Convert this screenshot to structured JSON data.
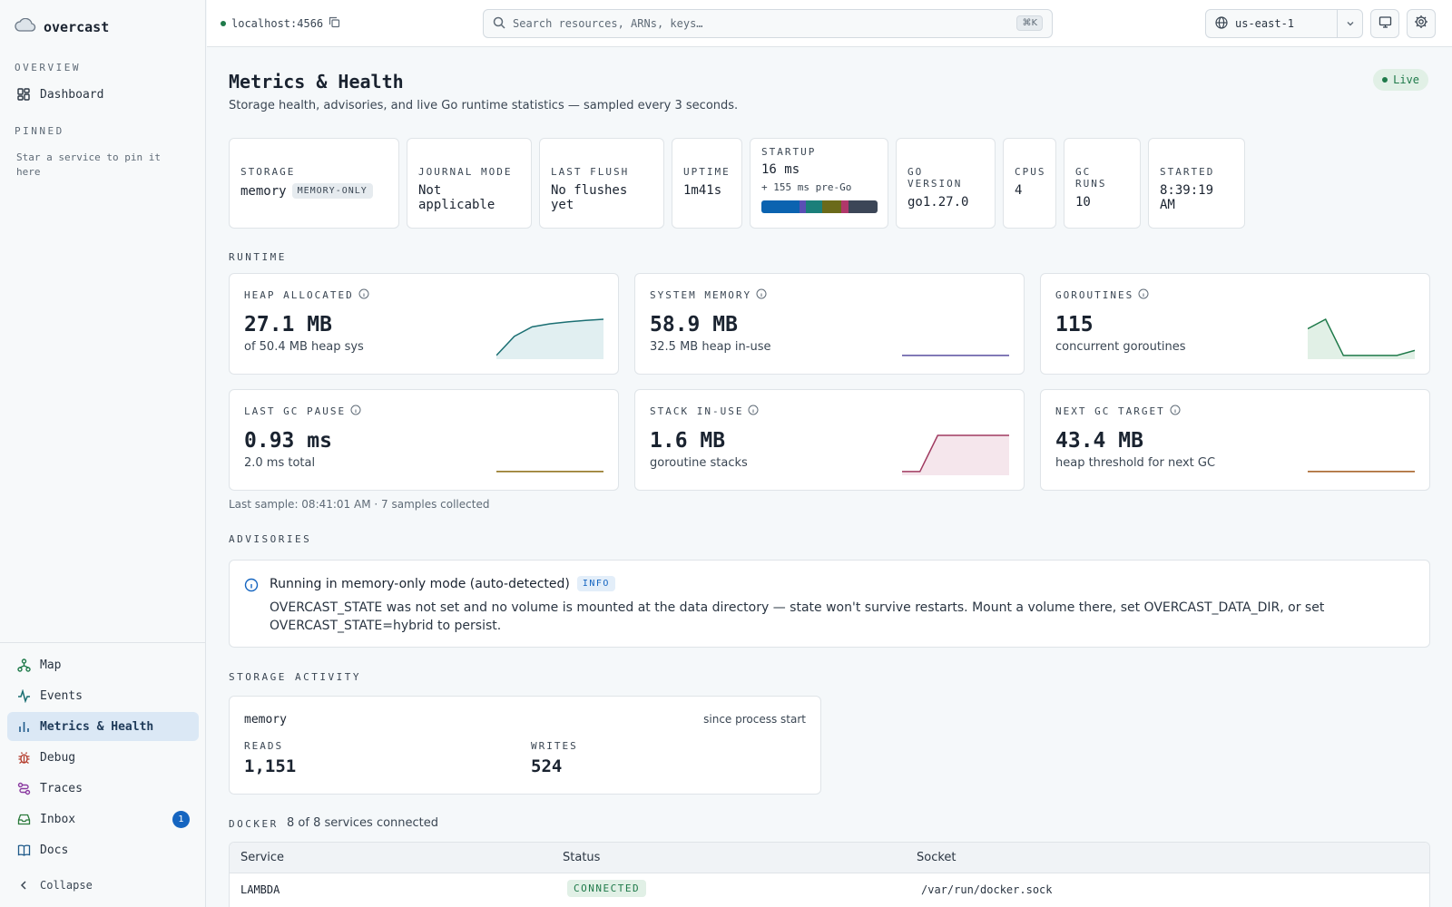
{
  "brand": {
    "name": "overcast"
  },
  "sidebar": {
    "overview_label": "OVERVIEW",
    "pinned_label": "PINNED",
    "pinned_hint": "Star a service to pin it here",
    "top_items": [
      {
        "label": "Dashboard",
        "icon": "dashboard-icon"
      }
    ],
    "bottom_items": [
      {
        "label": "Map",
        "icon": "map-icon"
      },
      {
        "label": "Events",
        "icon": "activity-icon"
      },
      {
        "label": "Metrics & Health",
        "icon": "bar-chart-icon",
        "active": true
      },
      {
        "label": "Debug",
        "icon": "bug-icon"
      },
      {
        "label": "Traces",
        "icon": "route-icon"
      },
      {
        "label": "Inbox",
        "icon": "inbox-icon",
        "badge": "1"
      },
      {
        "label": "Docs",
        "icon": "book-icon"
      }
    ],
    "collapse_label": "Collapse"
  },
  "header": {
    "host": "localhost:4566",
    "search_placeholder": "Search resources, ARNs, keys…",
    "search_shortcut": "⌘K",
    "region": "us-east-1"
  },
  "page": {
    "title": "Metrics & Health",
    "subtitle": "Storage health, advisories, and live Go runtime statistics — sampled every 3 seconds.",
    "live_label": "Live"
  },
  "stats": {
    "storage": {
      "label": "STORAGE",
      "value": "memory",
      "badge": "MEMORY-ONLY"
    },
    "journal": {
      "label": "JOURNAL MODE",
      "value": "Not applicable"
    },
    "flush": {
      "label": "LAST FLUSH",
      "value": "No flushes yet"
    },
    "uptime": {
      "label": "UPTIME",
      "value": "1m41s"
    },
    "startup": {
      "label": "STARTUP",
      "value": "16 ms",
      "extra": "+ 155 ms pre-Go",
      "segments": [
        {
          "color": "#0b63b0",
          "fraction": 0.33
        },
        {
          "color": "#5a4fb5",
          "fraction": 0.05
        },
        {
          "color": "#1b7f7a",
          "fraction": 0.14
        },
        {
          "color": "#6b6a1a",
          "fraction": 0.17
        },
        {
          "color": "#b0376a",
          "fraction": 0.06
        },
        {
          "color": "#3c4657",
          "fraction": 0.25
        }
      ]
    },
    "go_version": {
      "label": "GO VERSION",
      "value": "go1.27.0"
    },
    "cpus": {
      "label": "CPUS",
      "value": "4"
    },
    "gc_runs": {
      "label": "GC RUNS",
      "value": "10"
    },
    "started": {
      "label": "STARTED",
      "value": "8:39:19 AM"
    }
  },
  "runtime": {
    "section_label": "RUNTIME",
    "metrics": [
      {
        "label": "HEAP ALLOCATED",
        "value": "27.1 MB",
        "sub": "of 50.4 MB heap sys",
        "color": "#1b6f73",
        "fill": "#e1eff1",
        "spark": [
          0.05,
          0.55,
          0.8,
          0.88,
          0.93,
          0.97,
          1.0
        ]
      },
      {
        "label": "SYSTEM MEMORY",
        "value": "58.9 MB",
        "sub": "32.5 MB heap in-use",
        "color": "#5a4fa0",
        "fill": "none",
        "spark": [
          0.05,
          0.05,
          0.05,
          0.05,
          0.05,
          0.05,
          0.05
        ]
      },
      {
        "label": "GOROUTINES",
        "value": "115",
        "sub": "concurrent goroutines",
        "color": "#1f7a4a",
        "fill": "#e1f0e6",
        "spark": [
          0.75,
          1.0,
          0.05,
          0.05,
          0.05,
          0.05,
          0.18
        ]
      },
      {
        "label": "LAST GC PAUSE",
        "value": "0.93 ms",
        "sub": "2.0 ms total",
        "color": "#8a6a10",
        "fill": "none",
        "spark": [
          0.05,
          0.05,
          0.05,
          0.05,
          0.05,
          0.05,
          0.05
        ]
      },
      {
        "label": "STACK IN-USE",
        "value": "1.6 MB",
        "sub": "goroutine stacks",
        "color": "#a03a60",
        "fill": "#f5e6ec",
        "spark": [
          0.05,
          0.05,
          1.0,
          1.0,
          1.0,
          1.0,
          1.0
        ]
      },
      {
        "label": "NEXT GC TARGET",
        "value": "43.4 MB",
        "sub": "heap threshold for next GC",
        "color": "#a0581a",
        "fill": "none",
        "spark": [
          0.05,
          0.05,
          0.05,
          0.05,
          0.05,
          0.05,
          0.05
        ]
      }
    ],
    "last_sample": "Last sample: 08:41:01 AM · 7 samples collected"
  },
  "advisories": {
    "section_label": "ADVISORIES",
    "items": [
      {
        "title": "Running in memory-only mode (auto-detected)",
        "level": "INFO",
        "body": "OVERCAST_STATE was not set and no volume is mounted at the data directory — state won't survive restarts. Mount a volume there, set OVERCAST_DATA_DIR, or set OVERCAST_STATE=hybrid to persist."
      }
    ]
  },
  "storage_activity": {
    "section_label": "STORAGE ACTIVITY",
    "backend": "memory",
    "since": "since process start",
    "reads_label": "READS",
    "reads": "1,151",
    "writes_label": "WRITES",
    "writes": "524"
  },
  "docker": {
    "section_label": "DOCKER",
    "summary": "8 of 8 services connected",
    "columns": [
      "Service",
      "Status",
      "Socket"
    ],
    "rows": [
      {
        "service": "LAMBDA",
        "status": "CONNECTED",
        "socket": "/var/run/docker.sock"
      }
    ]
  }
}
